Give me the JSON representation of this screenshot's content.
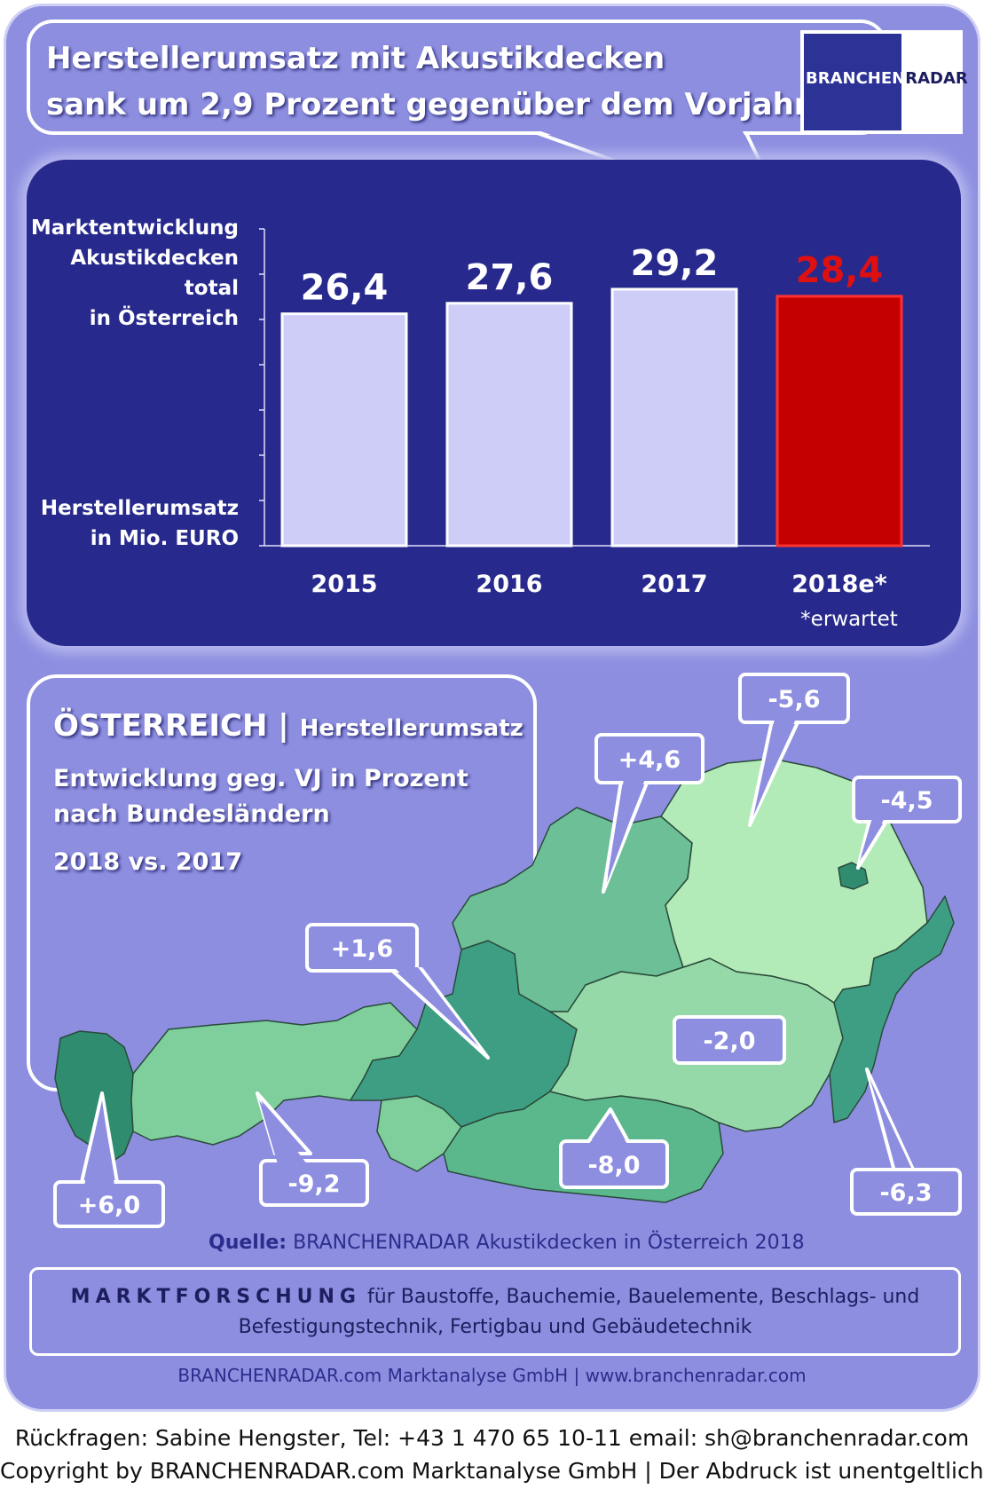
{
  "header": {
    "title_line1": "Herstellerumsatz mit  Akustikdecken",
    "title_line2": "sank um 2,9 Prozent gegenüber dem Vorjahr"
  },
  "logo": {
    "part1": "BRANCHEN",
    "part2": "RADAR"
  },
  "chart": {
    "ylabel_top": [
      "Marktentwicklung",
      "Akustikdecken",
      "total",
      "in Österreich"
    ],
    "ylabel_bottom": [
      "Herstellerumsatz",
      "in Mio. EURO"
    ],
    "footnote": "*erwartet"
  },
  "chart_data": {
    "type": "bar",
    "categories": [
      "2015",
      "2016",
      "2017",
      "2018e*"
    ],
    "values": [
      26.4,
      27.6,
      29.2,
      28.4
    ],
    "value_labels": [
      "26,4",
      "27,6",
      "29,2",
      "28,4"
    ],
    "ylabel": "Herstellerumsatz in Mio. EURO",
    "highlight_index": 3,
    "colors": {
      "normal": "#cdcdf8",
      "highlight": "#c40000",
      "highlight_label": "#e01010"
    }
  },
  "map": {
    "title": "ÖSTERREICH",
    "separator": "|",
    "subtitle": "Herstellerumsatz",
    "line1": "Entwicklung  geg. VJ in Prozent",
    "line2": "nach Bundesländern",
    "line3": "2018 vs. 2017",
    "callouts": [
      "+6,0",
      "-9,2",
      "+1,6",
      "+4,6",
      "-5,6",
      "-4,5",
      "-2,0",
      "-8,0",
      "-6,3"
    ]
  },
  "source": {
    "label": "Quelle:",
    "text": " BRANCHENRADAR Akustikdecken in Österreich 2018"
  },
  "info": {
    "bold": "MARKTFORSCHUNG",
    "line1": " für Baustoffe, Bauchemie, Bauelemente, Beschlags- und",
    "line2": "Befestigungstechnik, Fertigbau und Gebäudetechnik"
  },
  "website": "BRANCHENRADAR.com Marktanalyse GmbH | www.branchenradar.com",
  "footer": {
    "line1": "Rückfragen: Sabine Hengster, Tel: +43 1 470 65 10-11 email: sh@branchenradar.com",
    "line2": "Copyright by BRANCHENRADAR.com  Marktanalyse GmbH | Der Abdruck ist unentgeltlich."
  }
}
